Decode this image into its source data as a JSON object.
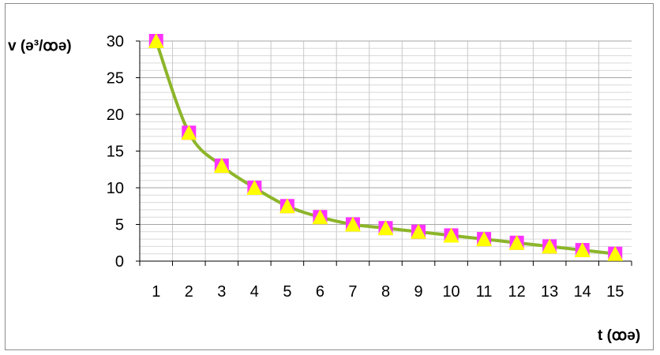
{
  "chart_data": {
    "type": "line",
    "title": "",
    "ylabel": "v (ə³/ꝏə)",
    "xlabel": "t (ꝏə)",
    "categories": [
      "1",
      "2",
      "3",
      "4",
      "5",
      "6",
      "7",
      "8",
      "9",
      "10",
      "11",
      "12",
      "13",
      "14",
      "15"
    ],
    "series": [
      {
        "values": [
          30,
          17.5,
          13,
          10,
          7.5,
          6,
          5,
          4.5,
          4,
          3.5,
          3,
          2.5,
          2,
          1.5,
          1
        ]
      }
    ],
    "ylim": [
      0,
      30
    ],
    "yticks": [
      0,
      5,
      10,
      15,
      20,
      25,
      30
    ],
    "grid": true,
    "line_color": "#8db52a",
    "marker_square_color": "#ff33ff",
    "marker_triangle_color": "#ffff00"
  }
}
